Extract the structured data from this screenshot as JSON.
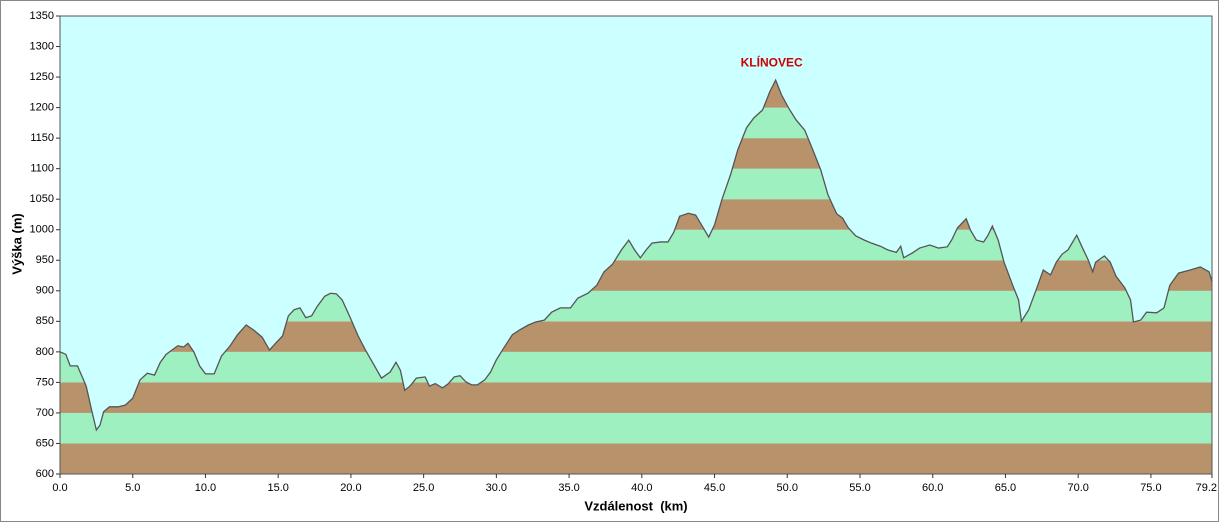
{
  "chart_data": {
    "type": "area",
    "x_label": "Vzdálenost  (km)",
    "y_label": "Výška (m)",
    "annotation": "KLÍNOVEC",
    "background": "#ccffff",
    "band_colors": [
      "#b8926a",
      "#9ef0c0"
    ],
    "line_color": "#555555",
    "xlim": [
      0,
      79.2
    ],
    "ylim": [
      600,
      1350
    ],
    "xticks": [
      {
        "value": 0,
        "label": "0.0"
      },
      {
        "value": 5,
        "label": "5.0"
      },
      {
        "value": 10,
        "label": "10.0"
      },
      {
        "value": 15,
        "label": "15.0"
      },
      {
        "value": 20,
        "label": "20.0"
      },
      {
        "value": 25,
        "label": "25.0"
      },
      {
        "value": 30,
        "label": "30.0"
      },
      {
        "value": 35,
        "label": "35.0"
      },
      {
        "value": 40,
        "label": "40.0"
      },
      {
        "value": 45,
        "label": "45.0"
      },
      {
        "value": 50,
        "label": "50.0"
      },
      {
        "value": 55,
        "label": "55.0"
      },
      {
        "value": 60,
        "label": "60.0"
      },
      {
        "value": 65,
        "label": "65.0"
      },
      {
        "value": 70,
        "label": "70.0"
      },
      {
        "value": 75,
        "label": "75.0"
      },
      79.2
    ],
    "yticks": [
      600,
      650,
      700,
      750,
      800,
      850,
      900,
      950,
      1000,
      1050,
      1100,
      1150,
      1200,
      1250,
      1300,
      1350
    ],
    "x": [
      0,
      0.4,
      0.7,
      1.2,
      1.8,
      2.2,
      2.5,
      2.75,
      3.0,
      3.4,
      4.0,
      4.5,
      5.0,
      5.5,
      6.0,
      6.5,
      6.9,
      7.3,
      7.7,
      8.1,
      8.5,
      8.8,
      9.2,
      9.6,
      10.0,
      10.6,
      11.1,
      11.7,
      12.2,
      12.8,
      13.3,
      13.9,
      14.4,
      14.9,
      15.3,
      15.7,
      16.1,
      16.5,
      16.9,
      17.3,
      17.7,
      18.2,
      18.6,
      19.0,
      19.4,
      19.9,
      20.5,
      21.0,
      21.6,
      22.1,
      22.7,
      23.1,
      23.4,
      23.7,
      24.1,
      24.5,
      25.1,
      25.4,
      25.8,
      26.3,
      26.7,
      27.1,
      27.5,
      27.9,
      28.3,
      28.7,
      29.2,
      29.6,
      30.0,
      30.5,
      31.1,
      31.6,
      32.2,
      32.7,
      33.3,
      33.8,
      34.4,
      35.1,
      35.6,
      36.3,
      36.9,
      37.4,
      38.0,
      38.6,
      39.1,
      39.5,
      39.9,
      40.3,
      40.7,
      41.3,
      41.8,
      42.2,
      42.6,
      43.2,
      43.7,
      44.1,
      44.6,
      45.0,
      45.5,
      46.1,
      46.6,
      47.2,
      47.7,
      48.3,
      48.8,
      49.2,
      49.6,
      50.1,
      50.6,
      51.2,
      51.7,
      52.3,
      52.8,
      53.4,
      53.8,
      54.2,
      54.7,
      55.3,
      55.8,
      56.4,
      56.9,
      57.5,
      57.8,
      58.0,
      58.6,
      59.1,
      59.8,
      60.4,
      61.0,
      61.3,
      61.7,
      62.3,
      62.6,
      63.0,
      63.5,
      63.8,
      64.1,
      64.5,
      64.9,
      65.5,
      65.9,
      66.1,
      66.6,
      67.1,
      67.6,
      68.1,
      68.5,
      68.9,
      69.3,
      69.9,
      70.3,
      70.7,
      71.0,
      71.2,
      71.8,
      72.2,
      72.6,
      73.2,
      73.6,
      73.8,
      74.3,
      74.7,
      75.4,
      75.9,
      76.3,
      76.9,
      77.7,
      78.4,
      79.0,
      79.2
    ],
    "values": [
      800,
      796,
      777,
      777,
      744,
      702,
      672,
      680,
      702,
      710,
      710,
      713,
      724,
      754,
      765,
      762,
      783,
      796,
      803,
      810,
      808,
      814,
      800,
      777,
      764,
      764,
      793,
      810,
      828,
      844,
      836,
      824,
      803,
      816,
      826,
      859,
      869,
      872,
      856,
      859,
      875,
      891,
      896,
      895,
      885,
      859,
      826,
      803,
      778,
      757,
      767,
      783,
      770,
      737,
      745,
      757,
      759,
      744,
      748,
      741,
      748,
      759,
      761,
      751,
      746,
      746,
      754,
      767,
      787,
      806,
      828,
      836,
      844,
      849,
      852,
      865,
      872,
      872,
      888,
      896,
      909,
      931,
      944,
      967,
      983,
      967,
      954,
      967,
      978,
      980,
      980,
      996,
      1022,
      1027,
      1024,
      1008,
      988,
      1008,
      1049,
      1090,
      1131,
      1167,
      1183,
      1196,
      1226,
      1245,
      1221,
      1199,
      1180,
      1163,
      1134,
      1098,
      1057,
      1026,
      1019,
      1003,
      990,
      983,
      978,
      973,
      967,
      963,
      973,
      954,
      962,
      970,
      975,
      970,
      972,
      983,
      1003,
      1018,
      999,
      983,
      980,
      991,
      1006,
      983,
      947,
      909,
      885,
      850,
      869,
      901,
      934,
      926,
      947,
      960,
      967,
      991,
      970,
      950,
      931,
      947,
      957,
      947,
      924,
      905,
      885,
      849,
      852,
      865,
      864,
      872,
      909,
      929,
      934,
      939,
      931,
      915
    ]
  }
}
